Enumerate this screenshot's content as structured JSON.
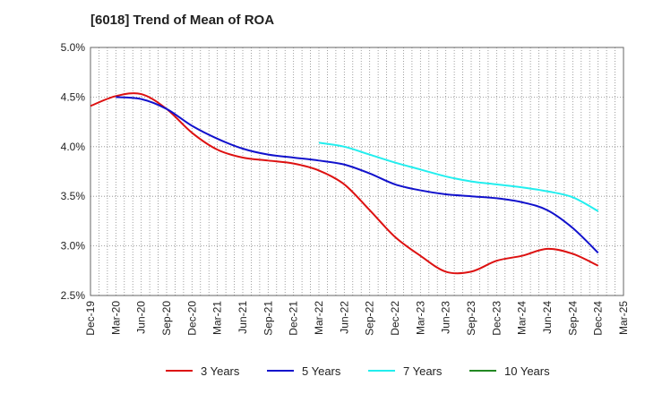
{
  "chart_data": {
    "type": "line",
    "title": "[6018]  Trend of Mean of ROA",
    "xlabel": "",
    "ylabel": "",
    "ylim": [
      2.5,
      5.0
    ],
    "yticks": [
      2.5,
      3.0,
      3.5,
      4.0,
      4.5,
      5.0
    ],
    "ytick_labels": [
      "2.5%",
      "3.0%",
      "3.5%",
      "4.0%",
      "4.5%",
      "5.0%"
    ],
    "x_tick_labels": [
      "Dec-19",
      "Mar-20",
      "Jun-20",
      "Sep-20",
      "Dec-20",
      "Mar-21",
      "Jun-21",
      "Sep-21",
      "Dec-21",
      "Mar-22",
      "Jun-22",
      "Sep-22",
      "Dec-22",
      "Mar-23",
      "Jun-23",
      "Sep-23",
      "Dec-23",
      "Mar-24",
      "Jun-24",
      "Sep-24",
      "Dec-24",
      "Mar-25"
    ],
    "grid": true,
    "legend_position": "bottom",
    "series": [
      {
        "name": "3 Years",
        "color": "#dd1111",
        "values": [
          4.41,
          4.51,
          4.53,
          4.38,
          4.14,
          3.97,
          3.89,
          3.86,
          3.83,
          3.76,
          3.62,
          3.36,
          3.09,
          2.9,
          2.74,
          2.74,
          2.85,
          2.9,
          2.97,
          2.92,
          2.8,
          null
        ]
      },
      {
        "name": "5 Years",
        "color": "#1111cc",
        "values": [
          null,
          4.5,
          4.48,
          4.38,
          4.21,
          4.08,
          3.98,
          3.92,
          3.89,
          3.86,
          3.82,
          3.73,
          3.62,
          3.56,
          3.52,
          3.5,
          3.48,
          3.44,
          3.36,
          3.18,
          2.93,
          null
        ]
      },
      {
        "name": "7 Years",
        "color": "#22eeee",
        "values": [
          null,
          null,
          null,
          null,
          null,
          null,
          null,
          null,
          null,
          4.04,
          4.0,
          3.92,
          3.84,
          3.77,
          3.7,
          3.65,
          3.62,
          3.59,
          3.55,
          3.49,
          3.35,
          null
        ]
      },
      {
        "name": "10 Years",
        "color": "#228822",
        "values": [
          null,
          null,
          null,
          null,
          null,
          null,
          null,
          null,
          null,
          null,
          null,
          null,
          null,
          null,
          null,
          null,
          null,
          null,
          null,
          null,
          null,
          null
        ]
      }
    ]
  }
}
